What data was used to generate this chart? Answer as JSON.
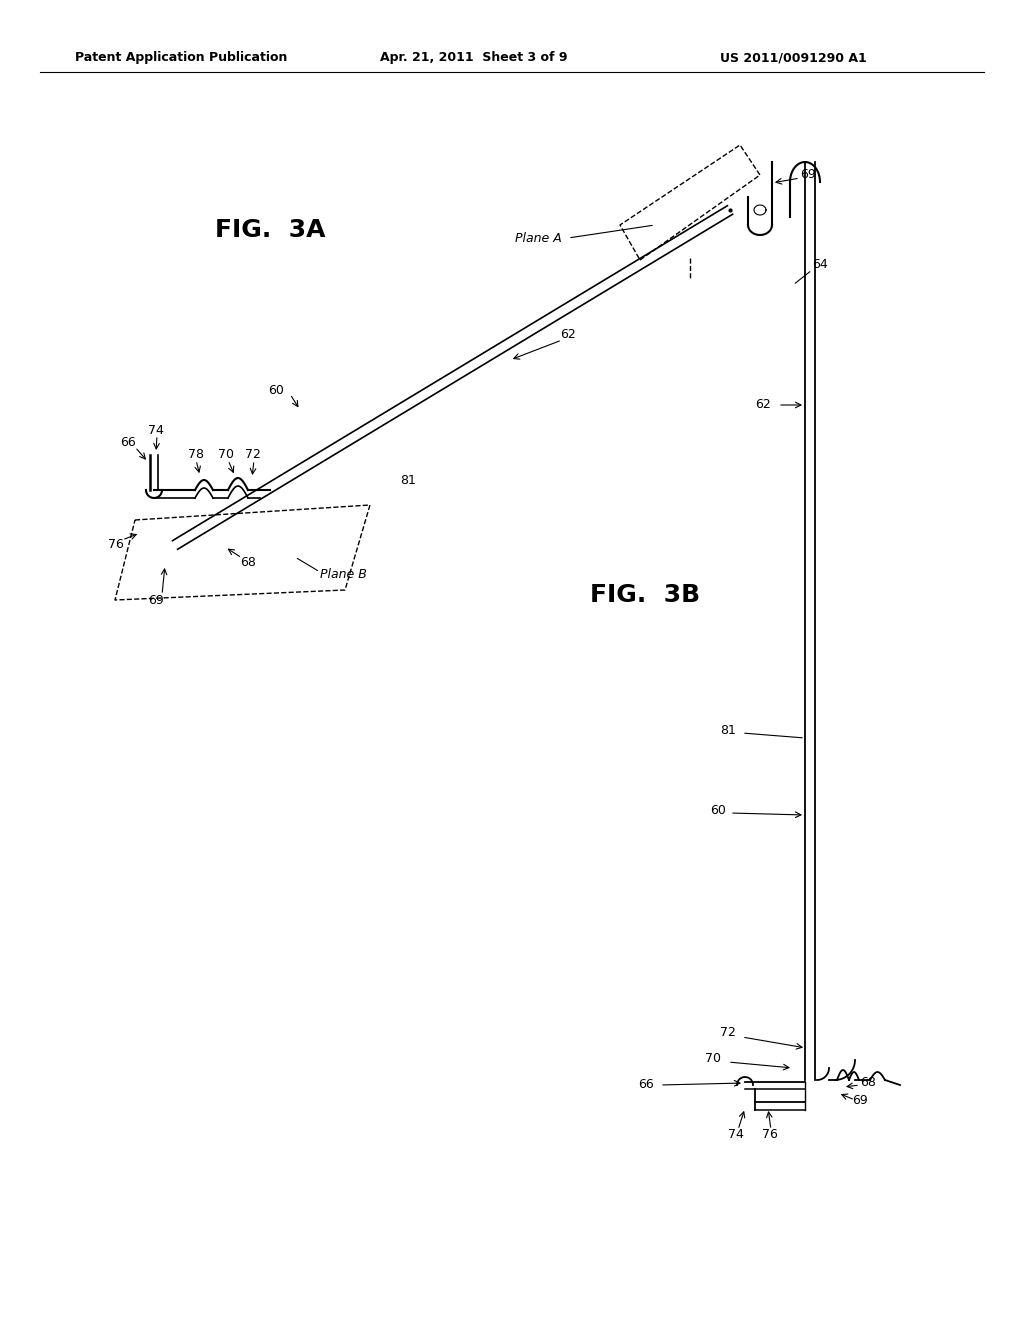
{
  "bg_color": "#ffffff",
  "header_left": "Patent Application Publication",
  "header_center": "Apr. 21, 2011  Sheet 3 of 9",
  "header_right": "US 2011/0091290 A1",
  "fig3a_label": "FIG.  3A",
  "fig3b_label": "FIG.  3B"
}
